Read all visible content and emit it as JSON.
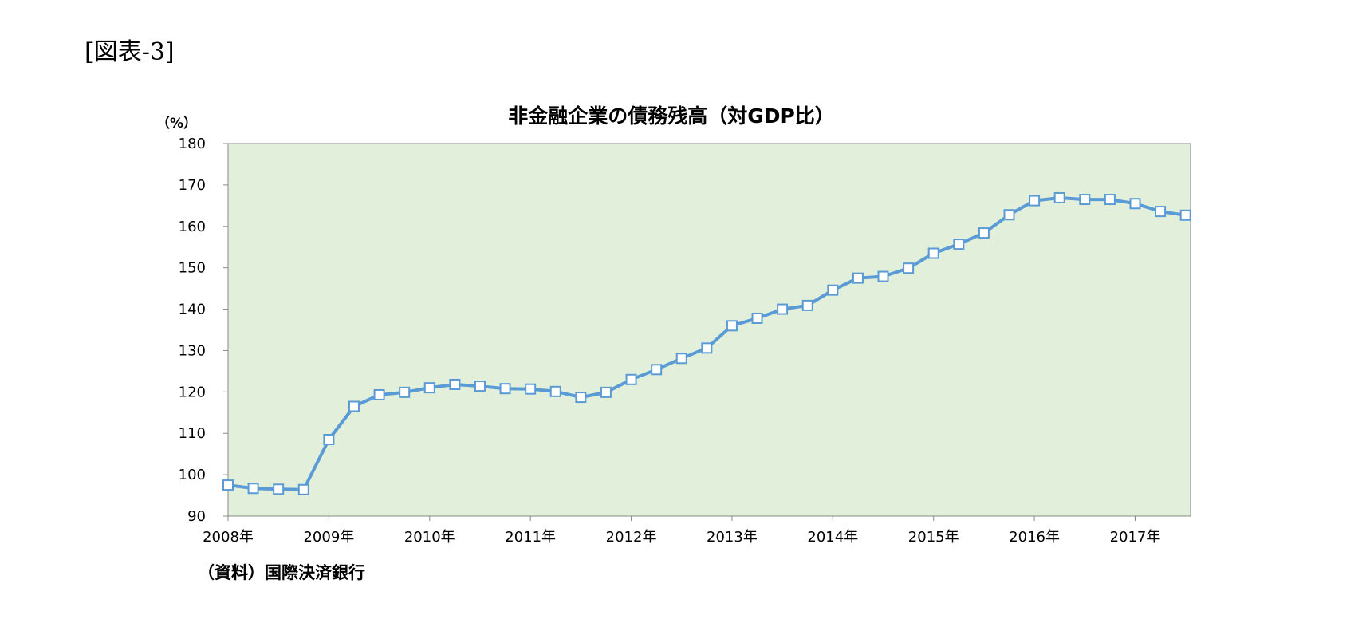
{
  "figure_label": "[図表-3]",
  "source_note": "（資料）国際決済銀行",
  "colors": {
    "plot_background": "#e2efda",
    "line": "#5b9bd5",
    "marker_fill": "#ffffff",
    "axis": "#888888"
  },
  "chart_data": {
    "type": "line",
    "title": "非金融企業の債務残高（対GDP比）",
    "ylabel": "（%）",
    "xlabel": "",
    "ylim": [
      90,
      180
    ],
    "yticks": [
      90,
      100,
      110,
      120,
      130,
      140,
      150,
      160,
      170,
      180
    ],
    "xlim": [
      2008.0,
      2017.55
    ],
    "xticks": [
      {
        "value": 2008,
        "label": "2008年"
      },
      {
        "value": 2009,
        "label": "2009年"
      },
      {
        "value": 2010,
        "label": "2010年"
      },
      {
        "value": 2011,
        "label": "2011年"
      },
      {
        "value": 2012,
        "label": "2012年"
      },
      {
        "value": 2013,
        "label": "2013年"
      },
      {
        "value": 2014,
        "label": "2014年"
      },
      {
        "value": 2015,
        "label": "2015年"
      },
      {
        "value": 2016,
        "label": "2016年"
      },
      {
        "value": 2017,
        "label": "2017年"
      }
    ],
    "grid": false,
    "legend": "none",
    "series": [
      {
        "marker": "square",
        "x": [
          2008.0,
          2008.25,
          2008.5,
          2008.75,
          2009.0,
          2009.25,
          2009.5,
          2009.75,
          2010.0,
          2010.25,
          2010.5,
          2010.75,
          2011.0,
          2011.25,
          2011.5,
          2011.75,
          2012.0,
          2012.25,
          2012.5,
          2012.75,
          2013.0,
          2013.25,
          2013.5,
          2013.75,
          2014.0,
          2014.25,
          2014.5,
          2014.75,
          2015.0,
          2015.25,
          2015.5,
          2015.75,
          2016.0,
          2016.25,
          2016.5,
          2016.75,
          2017.0,
          2017.25,
          2017.5
        ],
        "values": [
          97.5,
          96.7,
          96.5,
          96.4,
          108.5,
          116.5,
          119.3,
          119.9,
          121.0,
          121.8,
          121.4,
          120.8,
          120.7,
          120.1,
          118.7,
          119.9,
          123.0,
          125.4,
          128.1,
          130.6,
          136.0,
          137.8,
          140.0,
          140.9,
          144.6,
          147.5,
          147.9,
          149.9,
          153.5,
          155.7,
          158.4,
          162.8,
          166.2,
          166.9,
          166.5,
          166.5,
          165.5,
          163.6,
          162.7
        ]
      }
    ]
  }
}
